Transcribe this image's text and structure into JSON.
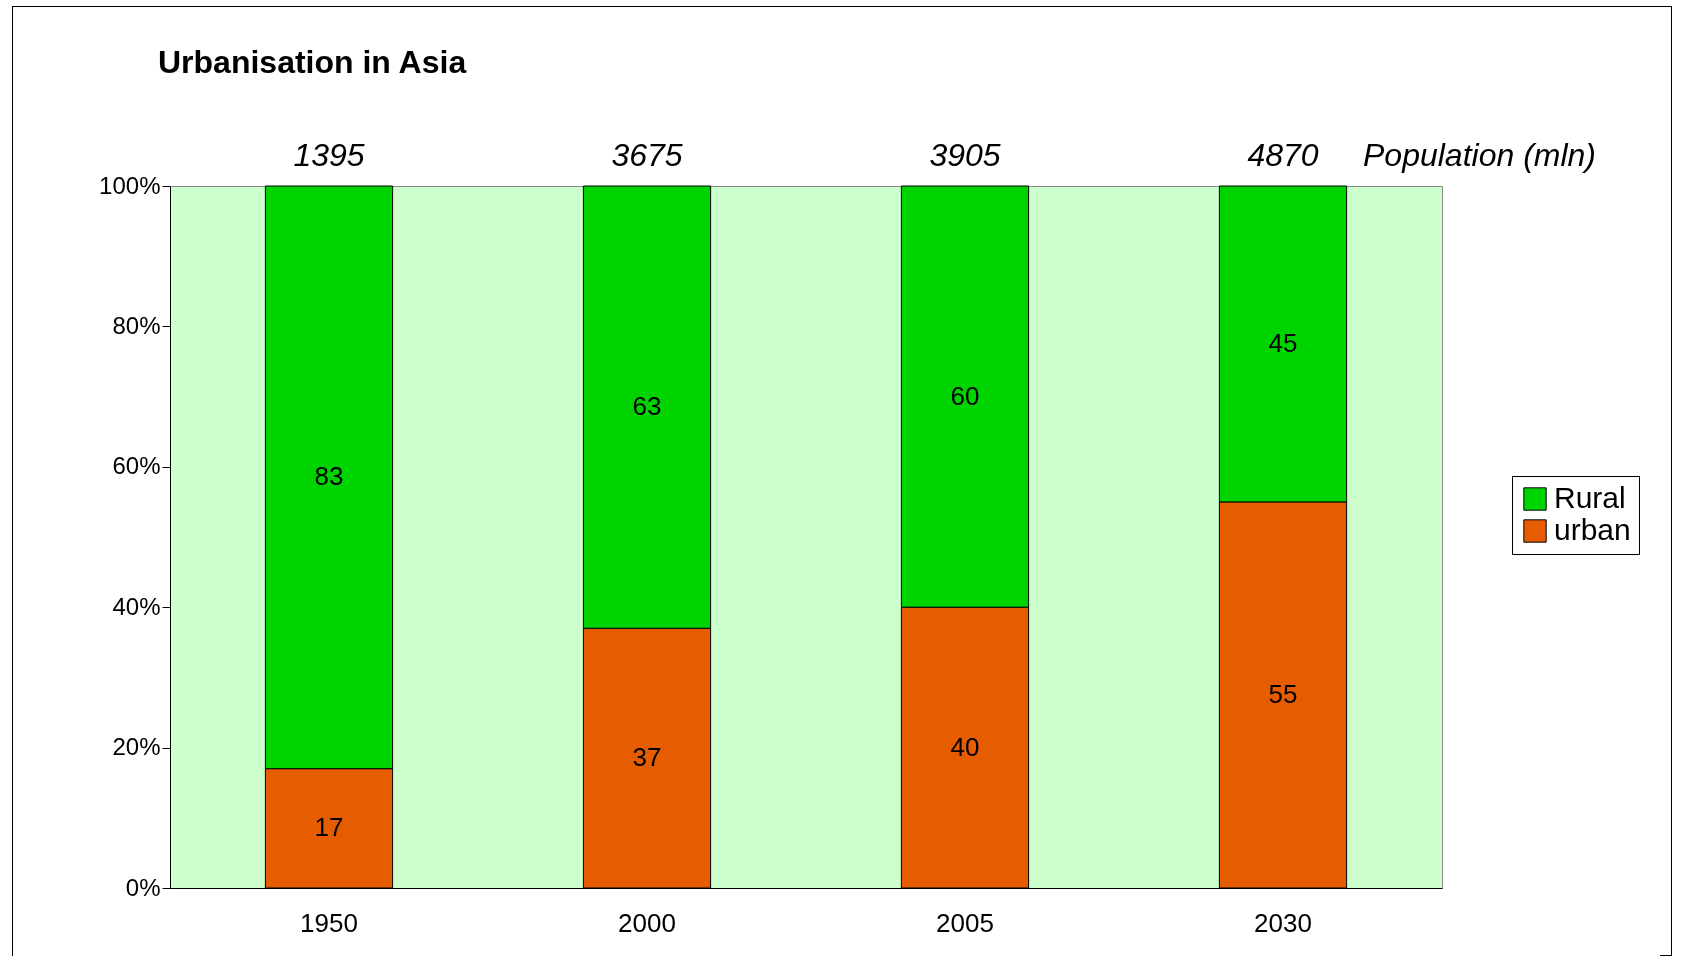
{
  "chart_data": {
    "type": "bar",
    "title": "Urbanisation in Asia",
    "stacked": true,
    "data_labels": true,
    "legend": "right",
    "grid": false,
    "categories": [
      "1950",
      "2000",
      "2005",
      "2030"
    ],
    "series": [
      {
        "name": "urban",
        "color": "#e65c00",
        "values": [
          17,
          37,
          40,
          55
        ]
      },
      {
        "name": "Rural",
        "color": "#00d400",
        "values": [
          83,
          63,
          60,
          45
        ]
      }
    ],
    "ylim": [
      0,
      100
    ],
    "yticks": [
      {
        "value": 0,
        "label": "0%"
      },
      {
        "value": 20,
        "label": "20%"
      },
      {
        "value": 40,
        "label": "40%"
      },
      {
        "value": 60,
        "label": "60%"
      },
      {
        "value": 80,
        "label": "80%"
      },
      {
        "value": 100,
        "label": "100%"
      }
    ],
    "annotations": [
      "1395",
      "3675",
      "3905",
      "4870",
      "Population (mln)"
    ]
  }
}
